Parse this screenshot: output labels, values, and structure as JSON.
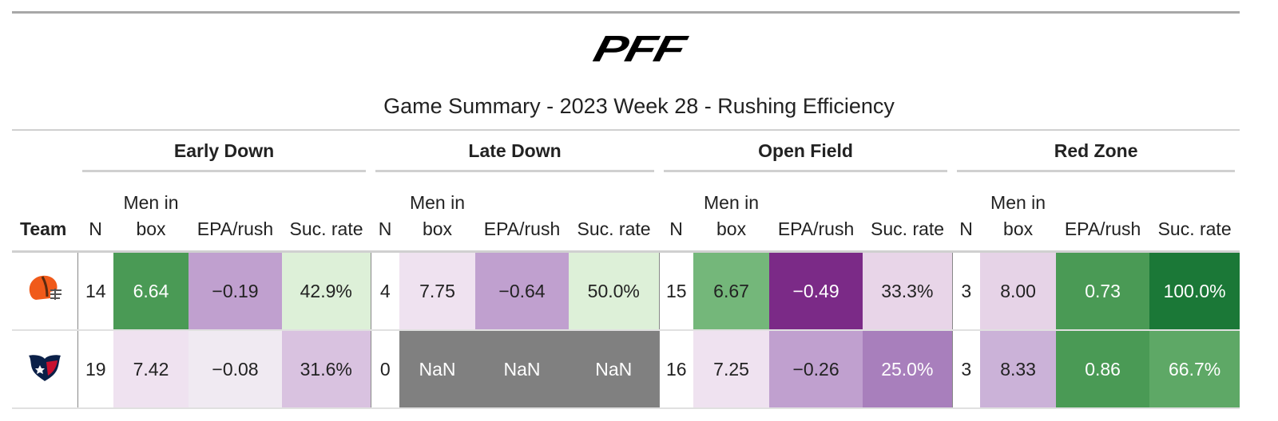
{
  "logo": "PFF",
  "title": "Game Summary - 2023 Week 28 - Rushing Efficiency",
  "table": {
    "team_header": "Team",
    "groups": [
      "Early Down",
      "Late Down",
      "Open Field",
      "Red Zone"
    ],
    "columns": [
      "N",
      "Men in box",
      "EPA/rush",
      "Suc. rate"
    ],
    "rows": [
      {
        "team": "browns",
        "cells": [
          "14",
          "6.64",
          "−0.19",
          "42.9%",
          "4",
          "7.75",
          "−0.64",
          "50.0%",
          "15",
          "6.67",
          "−0.49",
          "33.3%",
          "3",
          "8.00",
          "0.73",
          "100.0%"
        ],
        "fills": [
          "#ffffff",
          "#4a9a55",
          "#c0a0cf",
          "#ddf0d8",
          "#ffffff",
          "#efe2f0",
          "#c0a0cf",
          "#ddf0d8",
          "#ffffff",
          "#74b77a",
          "#7b2a87",
          "#e8d5e8",
          "#ffffff",
          "#e6d3e7",
          "#4a9a55",
          "#1b7837"
        ]
      },
      {
        "team": "texans",
        "cells": [
          "19",
          "7.42",
          "−0.08",
          "31.6%",
          "0",
          "NaN",
          "NaN",
          "NaN",
          "16",
          "7.25",
          "−0.26",
          "25.0%",
          "3",
          "8.33",
          "0.86",
          "66.7%"
        ],
        "fills": [
          "#ffffff",
          "#efe2f0",
          "#f0eaf2",
          "#d9c2e0",
          "#ffffff",
          "#808080",
          "#808080",
          "#808080",
          "#ffffff",
          "#efe2f0",
          "#c0a0cf",
          "#a87fbc",
          "#ffffff",
          "#cbb2d8",
          "#4a9a55",
          "#5ea866"
        ]
      }
    ]
  }
}
